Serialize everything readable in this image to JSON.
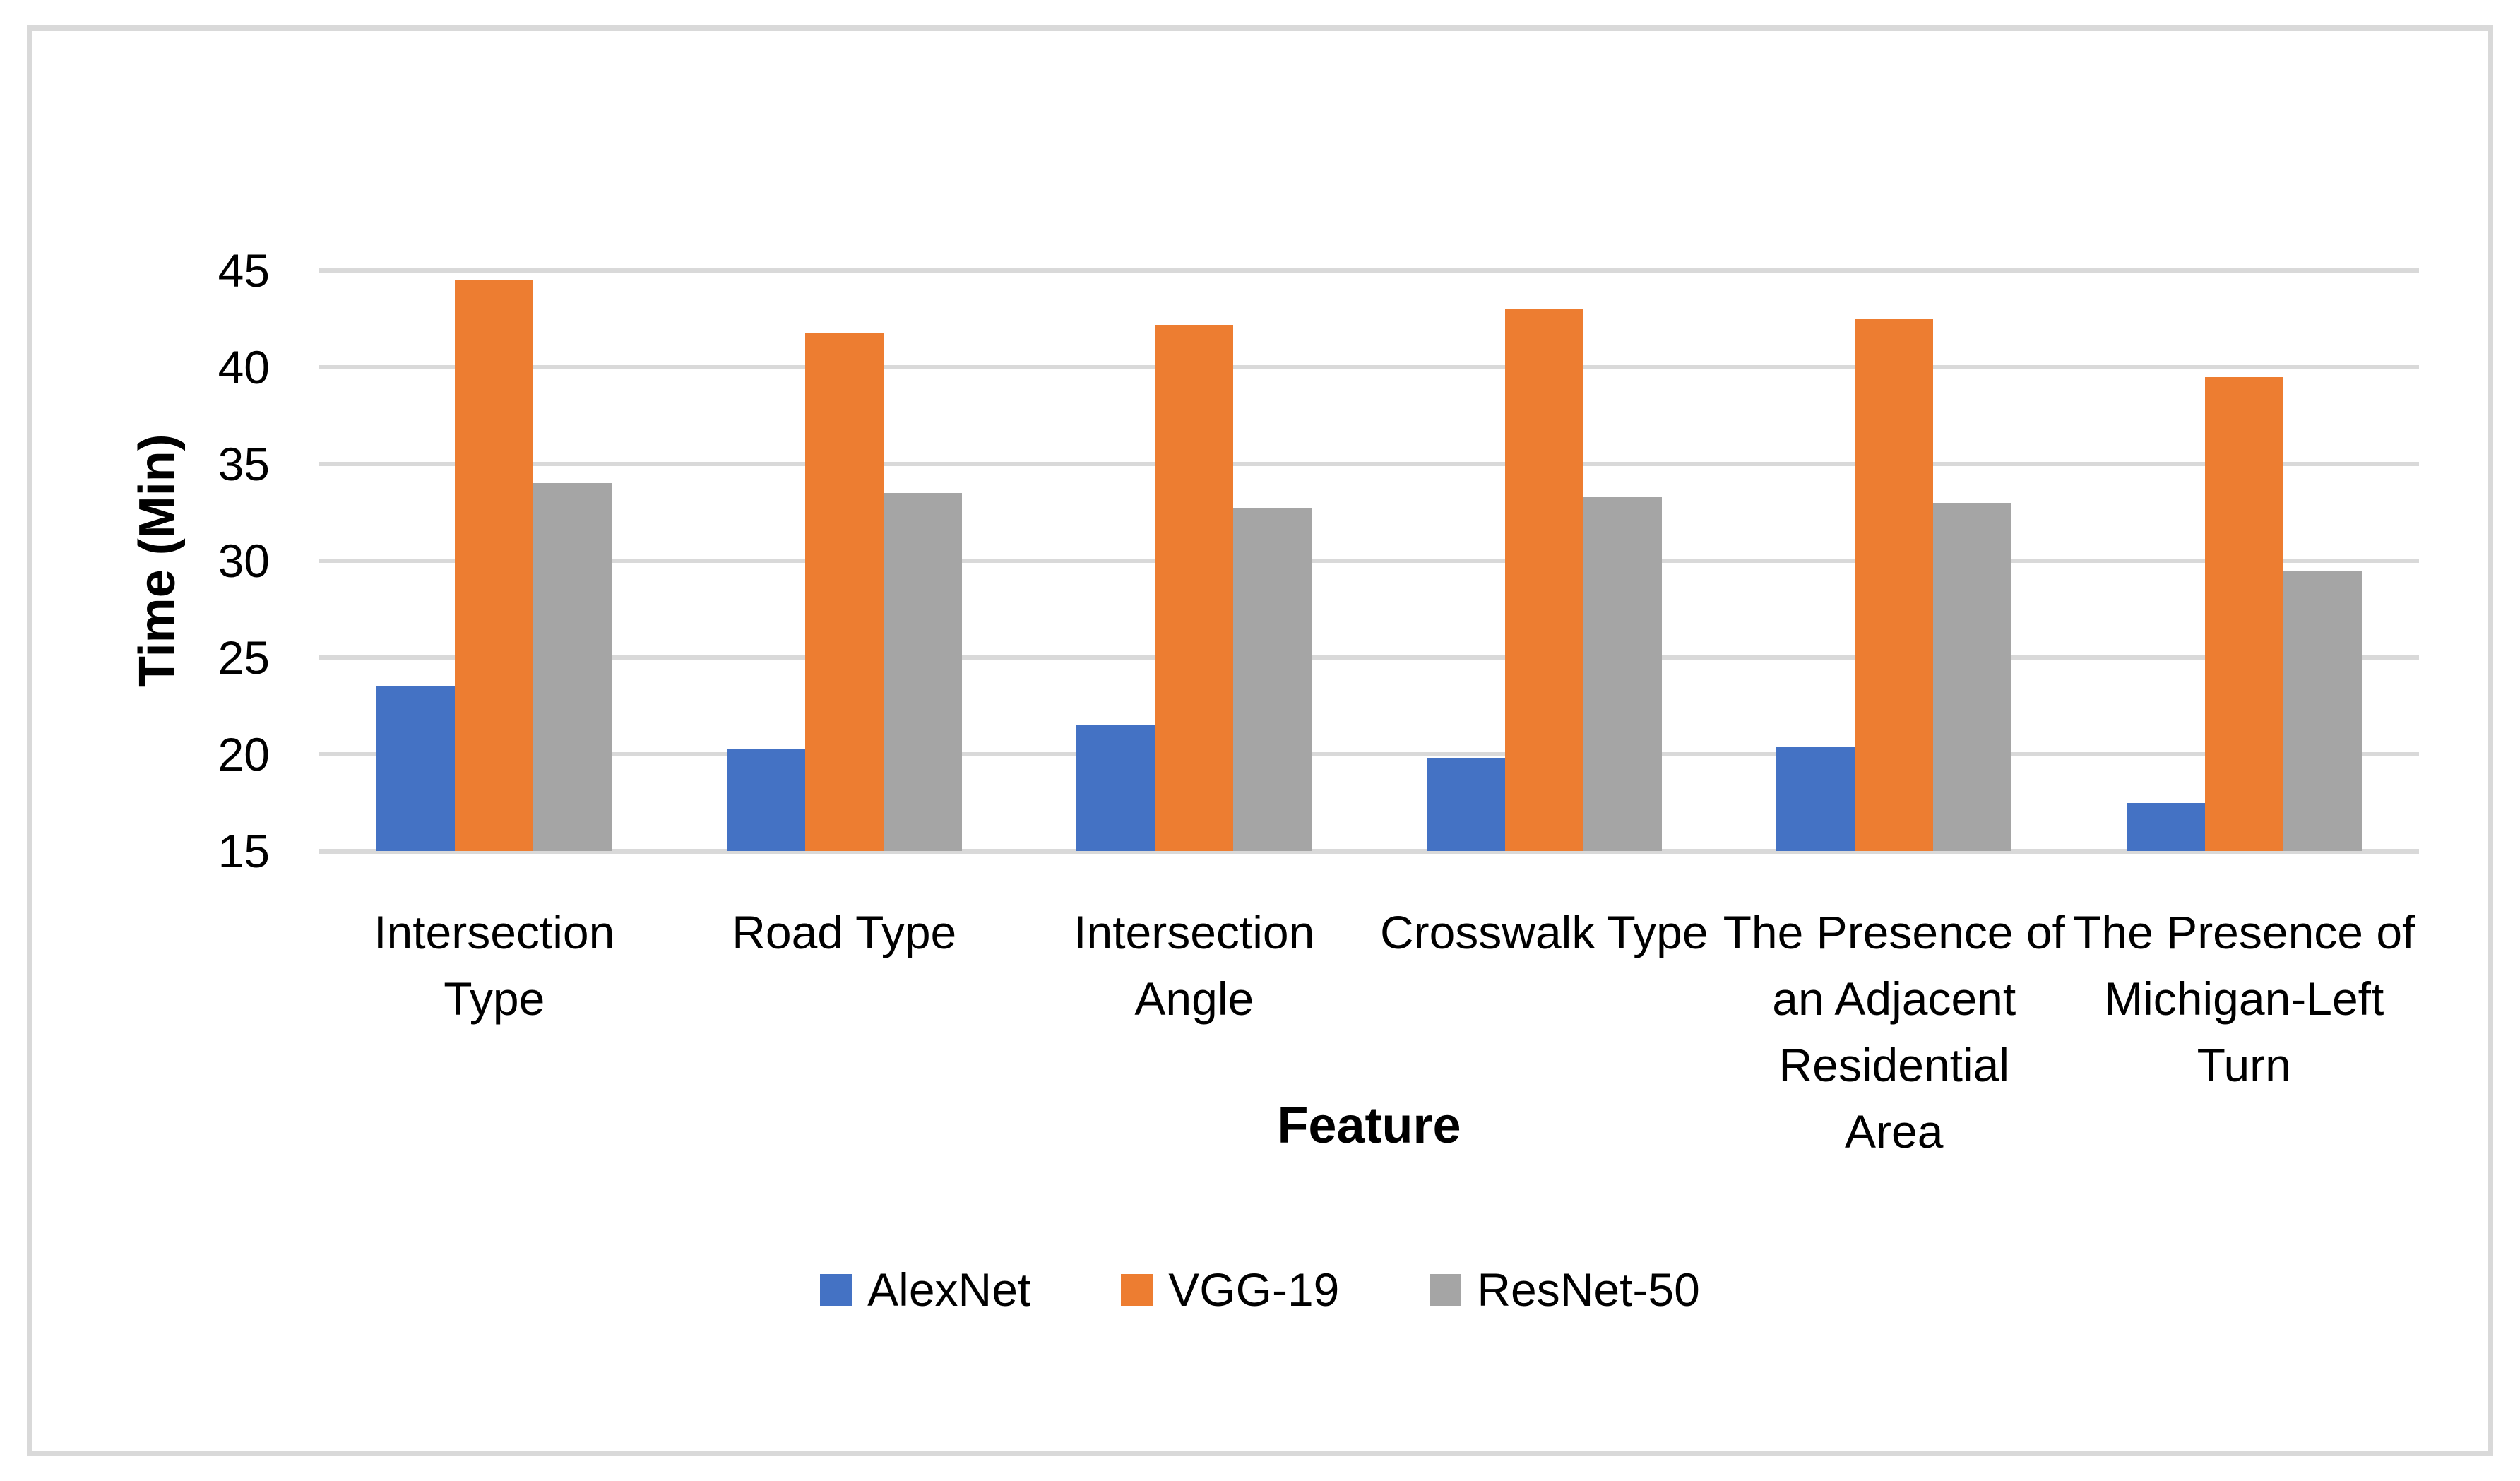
{
  "chart_data": {
    "type": "bar",
    "title": "",
    "xlabel": "Feature",
    "ylabel": "Time (Min)",
    "ylim": [
      15,
      45
    ],
    "yticks": [
      15,
      20,
      25,
      30,
      35,
      40,
      45
    ],
    "grid": "horizontal",
    "legend_position": "bottom",
    "gridline_color": "#D9D9D9",
    "frame_border_color": "#D9D9D9",
    "categories": [
      "Intersection Type",
      "Road Type",
      "Intersection Angle",
      "Crosswalk Type",
      "The Presence of an Adjacent Residential Area",
      "The Presence of Michigan-Left Turn"
    ],
    "category_display_lines": [
      "Intersection\nType",
      "Road Type",
      "Intersection\nAngle",
      "Crosswalk Type",
      "The Presence of\nan Adjacent\nResidential\nArea",
      "The Presence of\nMichigan-Left\nTurn"
    ],
    "series": [
      {
        "name": "AlexNet",
        "color": "#4472C4",
        "values": [
          23.5,
          20.3,
          21.5,
          19.8,
          20.4,
          17.5
        ]
      },
      {
        "name": "VGG-19",
        "color": "#ED7D31",
        "values": [
          44.5,
          41.8,
          42.2,
          43.0,
          42.5,
          39.5
        ]
      },
      {
        "name": "ResNet-50",
        "color": "#A5A5A5",
        "values": [
          34.0,
          33.5,
          32.7,
          33.3,
          33.0,
          29.5
        ]
      }
    ]
  }
}
